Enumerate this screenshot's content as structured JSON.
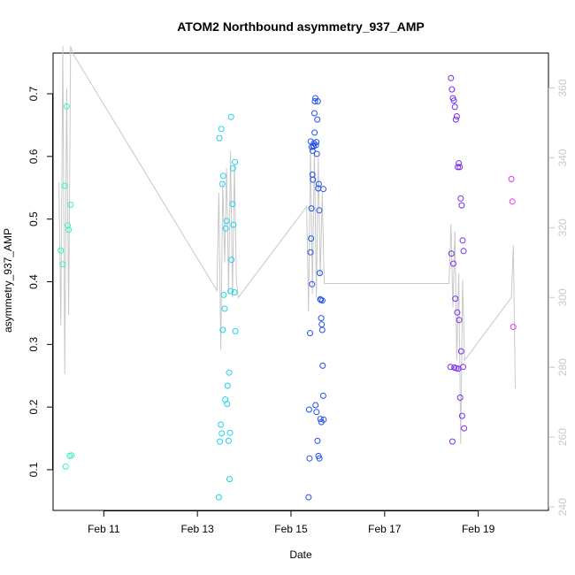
{
  "chart_data": {
    "type": "scatter",
    "title": "ATOM2 Northbound asymmetry_937_AMP",
    "xlabel": "Date",
    "ylabel": "asymmetry_937_AMP",
    "xlim": [
      "2019-02-09T22:00",
      "2019-02-20T12:00"
    ],
    "ylim": [
      0.035,
      0.765
    ],
    "x_ticks": [
      "2019-02-11",
      "2019-02-13",
      "2019-02-15",
      "2019-02-17",
      "2019-02-19"
    ],
    "x_tick_labels": [
      "Feb 11",
      "Feb 13",
      "Feb 15",
      "Feb 17",
      "Feb 19"
    ],
    "y_ticks": [
      0.1,
      0.2,
      0.3,
      0.4,
      0.5,
      0.6,
      0.7
    ],
    "y2_ticks": [
      240,
      260,
      280,
      300,
      320,
      340,
      360
    ],
    "y2lim": [
      239,
      370
    ],
    "grid": false,
    "legend": "none",
    "colors": {
      "axis": "#000000",
      "secondary": "#c8c8c8",
      "line": "#c8c8c8"
    },
    "series": [
      {
        "color": "#33f5c5",
        "x": [
          "2019-02-10T02:00",
          "2019-02-10T03:00",
          "2019-02-10T04:00",
          "2019-02-10T05:00",
          "2019-02-10T05:30",
          "2019-02-10T06:00",
          "2019-02-10T07:00",
          "2019-02-10T06:30",
          "2019-02-10T07:30",
          "2019-02-10T04:30"
        ],
        "y": [
          0.45,
          0.428,
          0.553,
          0.68,
          0.49,
          0.483,
          0.523,
          0.122,
          0.123,
          0.105
        ]
      },
      {
        "color": "#1fd3ef",
        "x": [
          "2019-02-13T11:00",
          "2019-02-13T11:30",
          "2019-02-13T12:00",
          "2019-02-13T12:30",
          "2019-02-13T13:00",
          "2019-02-13T13:30",
          "2019-02-13T14:00",
          "2019-02-13T14:30",
          "2019-02-13T15:00",
          "2019-02-13T15:30",
          "2019-02-13T16:00",
          "2019-02-13T16:30",
          "2019-02-13T17:00",
          "2019-02-13T17:30",
          "2019-02-13T18:00",
          "2019-02-13T18:30",
          "2019-02-13T19:00",
          "2019-02-13T19:30",
          "2019-02-13T12:15",
          "2019-02-13T13:15",
          "2019-02-13T14:15",
          "2019-02-13T15:15",
          "2019-02-13T16:15",
          "2019-02-13T17:15",
          "2019-02-13T18:15",
          "2019-02-13T19:15",
          "2019-02-13T11:15",
          "2019-02-13T12:45",
          "2019-02-13T16:45"
        ],
        "y": [
          0.056,
          0.145,
          0.172,
          0.158,
          0.323,
          0.379,
          0.357,
          0.485,
          0.497,
          0.234,
          0.146,
          0.085,
          0.385,
          0.435,
          0.524,
          0.491,
          0.383,
          0.321,
          0.644,
          0.569,
          0.212,
          0.205,
          0.255,
          0.663,
          0.581,
          0.591,
          0.629,
          0.556,
          0.159
        ]
      },
      {
        "color": "#2251ee",
        "x": [
          "2019-02-15T09:00",
          "2019-02-15T09:15",
          "2019-02-15T09:30",
          "2019-02-15T09:45",
          "2019-02-15T10:00",
          "2019-02-15T10:15",
          "2019-02-15T10:30",
          "2019-02-15T10:45",
          "2019-02-15T11:00",
          "2019-02-15T11:15",
          "2019-02-15T11:30",
          "2019-02-15T11:45",
          "2019-02-15T12:00",
          "2019-02-15T12:15",
          "2019-02-15T12:30",
          "2019-02-15T12:45",
          "2019-02-15T13:00",
          "2019-02-15T13:15",
          "2019-02-15T13:30",
          "2019-02-15T13:45",
          "2019-02-15T14:00",
          "2019-02-15T14:15",
          "2019-02-15T14:30",
          "2019-02-15T14:45",
          "2019-02-15T15:00",
          "2019-02-15T15:15",
          "2019-02-15T15:30",
          "2019-02-15T15:45",
          "2019-02-15T16:00",
          "2019-02-15T16:15",
          "2019-02-15T16:30",
          "2019-02-15T16:45",
          "2019-02-15T10:05",
          "2019-02-15T10:35",
          "2019-02-15T11:05",
          "2019-02-15T11:35",
          "2019-02-15T12:05",
          "2019-02-15T12:35",
          "2019-02-15T13:05",
          "2019-02-15T13:35",
          "2019-02-15T14:05",
          "2019-02-15T14:35",
          "2019-02-15T15:05",
          "2019-02-15T15:35",
          "2019-02-15T16:05",
          "2019-02-15T16:35"
        ],
        "y": [
          0.056,
          0.196,
          0.118,
          0.318,
          0.447,
          0.469,
          0.517,
          0.396,
          0.571,
          0.563,
          0.616,
          0.621,
          0.669,
          0.688,
          0.693,
          0.618,
          0.623,
          0.604,
          0.659,
          0.688,
          0.549,
          0.556,
          0.514,
          0.414,
          0.372,
          0.371,
          0.342,
          0.332,
          0.323,
          0.266,
          0.218,
          0.18,
          0.624,
          0.615,
          0.609,
          0.617,
          0.638,
          0.203,
          0.192,
          0.146,
          0.122,
          0.118,
          0.181,
          0.176,
          0.37,
          0.548
        ]
      },
      {
        "color": "#7a2df0",
        "x": [
          "2019-02-18T10:00",
          "2019-02-18T10:30",
          "2019-02-18T11:00",
          "2019-02-18T11:30",
          "2019-02-18T12:00",
          "2019-02-18T12:30",
          "2019-02-18T13:00",
          "2019-02-18T13:30",
          "2019-02-18T14:00",
          "2019-02-18T14:30",
          "2019-02-18T15:00",
          "2019-02-18T15:30",
          "2019-02-18T16:00",
          "2019-02-18T16:30",
          "2019-02-18T10:15",
          "2019-02-18T11:15",
          "2019-02-18T12:15",
          "2019-02-18T13:15",
          "2019-02-18T14:15",
          "2019-02-18T15:15",
          "2019-02-18T16:15",
          "2019-02-18T11:45",
          "2019-02-18T12:45",
          "2019-02-18T13:45",
          "2019-02-18T14:45",
          "2019-02-18T15:45",
          "2019-02-18T16:45",
          "2019-02-18T10:45",
          "2019-02-18T09:45"
        ],
        "y": [
          0.725,
          0.707,
          0.693,
          0.689,
          0.679,
          0.659,
          0.664,
          0.583,
          0.589,
          0.583,
          0.533,
          0.522,
          0.466,
          0.449,
          0.445,
          0.429,
          0.373,
          0.351,
          0.339,
          0.289,
          0.264,
          0.263,
          0.262,
          0.261,
          0.215,
          0.186,
          0.166,
          0.145,
          0.264
        ]
      },
      {
        "color": "#e636e8",
        "x": [
          "2019-02-19T17:00",
          "2019-02-19T17:30",
          "2019-02-19T18:00"
        ],
        "y": [
          0.564,
          0.528,
          0.328
        ]
      }
    ],
    "secondary_series": {
      "name": "",
      "color": "#c8c8c8",
      "x": [
        "2019-02-10T01:00",
        "2019-02-10T02:00",
        "2019-02-10T03:00",
        "2019-02-10T04:00",
        "2019-02-10T05:00",
        "2019-02-10T06:00",
        "2019-02-10T07:00",
        "2019-02-10T08:00",
        "2019-02-13T10:00",
        "2019-02-13T11:00",
        "2019-02-13T12:00",
        "2019-02-13T13:00",
        "2019-02-13T14:00",
        "2019-02-13T15:00",
        "2019-02-13T16:00",
        "2019-02-13T17:00",
        "2019-02-13T18:00",
        "2019-02-13T19:00",
        "2019-02-13T20:00",
        "2019-02-13T21:00",
        "2019-02-15T08:00",
        "2019-02-15T09:00",
        "2019-02-15T10:00",
        "2019-02-15T11:00",
        "2019-02-15T12:00",
        "2019-02-15T13:00",
        "2019-02-15T14:00",
        "2019-02-15T15:00",
        "2019-02-15T16:00",
        "2019-02-15T17:00",
        "2019-02-18T09:00",
        "2019-02-18T10:00",
        "2019-02-18T11:00",
        "2019-02-18T12:00",
        "2019-02-18T13:00",
        "2019-02-18T14:00",
        "2019-02-18T15:00",
        "2019-02-18T16:00",
        "2019-02-18T17:00",
        "2019-02-19T17:00",
        "2019-02-19T18:00",
        "2019-02-19T19:00"
      ],
      "y": [
        333,
        292,
        372,
        278,
        360,
        295,
        372,
        370,
        302,
        330,
        285,
        333,
        310,
        337,
        301,
        342,
        300,
        338,
        305,
        300,
        326,
        296,
        343,
        301,
        343,
        300,
        340,
        306,
        330,
        304,
        304,
        321,
        297,
        319,
        282,
        307,
        258,
        305,
        282,
        300,
        315,
        274
      ]
    }
  }
}
